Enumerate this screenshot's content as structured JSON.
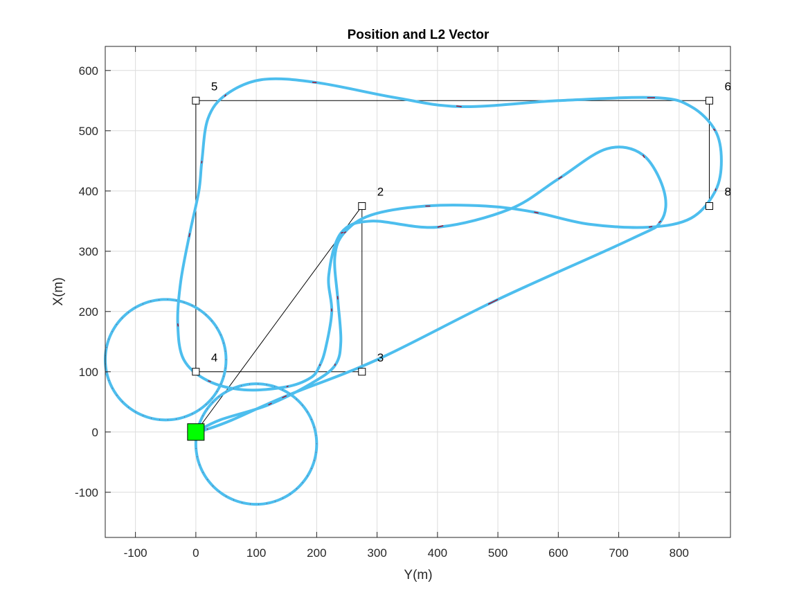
{
  "chart_data": {
    "type": "line",
    "title": "Position and L2 Vector",
    "xlabel": "Y(m)",
    "ylabel": "X(m)",
    "xlim": [
      -150,
      885
    ],
    "ylim": [
      -175,
      640
    ],
    "xticks": [
      -100,
      0,
      100,
      200,
      300,
      400,
      500,
      600,
      700,
      800
    ],
    "yticks": [
      -100,
      0,
      100,
      200,
      300,
      400,
      500,
      600
    ],
    "grid": true,
    "legend": "none",
    "colors": {
      "trajectory": "#4dbeee",
      "l2_vector": "#a2142f",
      "route": "#000000",
      "start_marker": "#00ff00"
    },
    "start_point": {
      "x": 0,
      "y": 0
    },
    "route": {
      "points": [
        [
          0,
          0
        ],
        [
          275,
          375
        ],
        [
          275,
          100
        ],
        [
          0,
          100
        ],
        [
          0,
          550
        ],
        [
          850,
          550
        ],
        [
          850,
          375
        ]
      ],
      "labels": [
        {
          "text": "2",
          "x": 275,
          "y": 375
        },
        {
          "text": "3",
          "x": 275,
          "y": 100
        },
        {
          "text": "4",
          "x": 0,
          "y": 100
        },
        {
          "text": "5",
          "x": 0,
          "y": 550
        },
        {
          "text": "6",
          "x": 850,
          "y": 550
        },
        {
          "text": "8",
          "x": 850,
          "y": 375
        }
      ]
    },
    "series": [
      {
        "type": "circle",
        "center": [
          -50,
          120
        ],
        "radius": 100
      },
      {
        "type": "circle",
        "center": [
          100,
          -20
        ],
        "radius": 100
      },
      {
        "type": "path",
        "points": [
          [
            0,
            0
          ],
          [
            40,
            20
          ],
          [
            120,
            45
          ],
          [
            190,
            80
          ],
          [
            230,
            110
          ],
          [
            240,
            150
          ],
          [
            235,
            220
          ],
          [
            230,
            290
          ],
          [
            245,
            330
          ],
          [
            290,
            360
          ],
          [
            380,
            375
          ],
          [
            480,
            375
          ],
          [
            560,
            365
          ],
          [
            650,
            345
          ],
          [
            750,
            340
          ],
          [
            820,
            355
          ],
          [
            860,
            400
          ],
          [
            870,
            450
          ],
          [
            860,
            500
          ],
          [
            820,
            540
          ],
          [
            760,
            555
          ],
          [
            600,
            550
          ],
          [
            440,
            540
          ],
          [
            330,
            555
          ],
          [
            200,
            580
          ],
          [
            110,
            585
          ],
          [
            50,
            560
          ],
          [
            20,
            520
          ],
          [
            10,
            450
          ],
          [
            5,
            400
          ],
          [
            -10,
            330
          ],
          [
            -25,
            250
          ],
          [
            -30,
            180
          ],
          [
            -20,
            120
          ],
          [
            20,
            85
          ],
          [
            80,
            70
          ],
          [
            150,
            75
          ],
          [
            190,
            90
          ],
          [
            205,
            110
          ],
          [
            215,
            140
          ],
          [
            225,
            200
          ],
          [
            220,
            260
          ],
          [
            240,
            330
          ],
          [
            290,
            350
          ],
          [
            400,
            340
          ],
          [
            520,
            370
          ],
          [
            600,
            420
          ],
          [
            680,
            470
          ],
          [
            740,
            460
          ],
          [
            775,
            400
          ],
          [
            770,
            350
          ],
          [
            720,
            320
          ],
          [
            500,
            220
          ],
          [
            300,
            120
          ],
          [
            150,
            60
          ],
          [
            60,
            20
          ],
          [
            20,
            5
          ],
          [
            0,
            0
          ]
        ]
      }
    ]
  }
}
